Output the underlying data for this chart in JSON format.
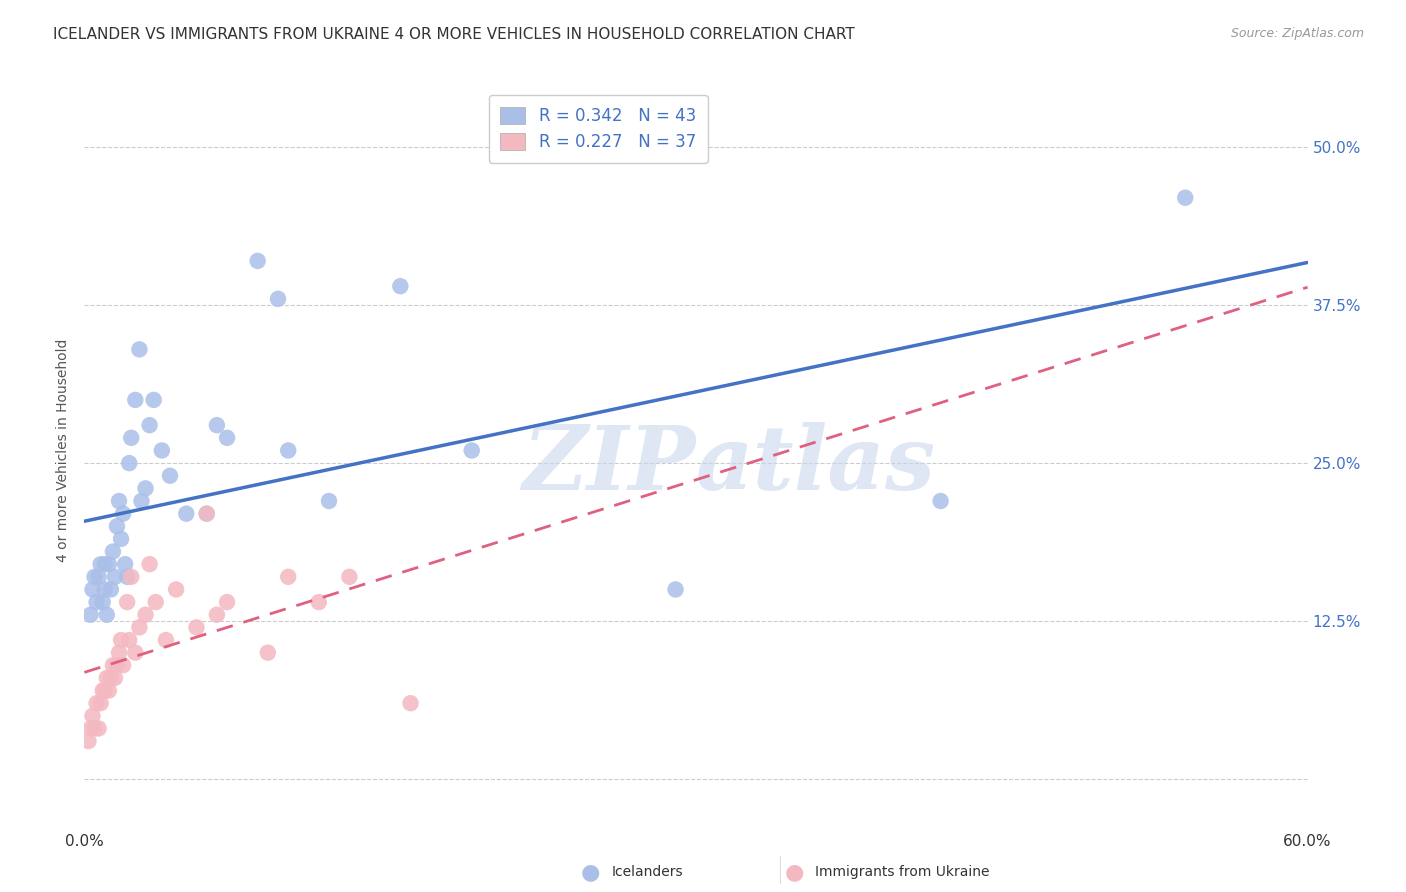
{
  "title": "ICELANDER VS IMMIGRANTS FROM UKRAINE 4 OR MORE VEHICLES IN HOUSEHOLD CORRELATION CHART",
  "source": "Source: ZipAtlas.com",
  "ylabel": "4 or more Vehicles in Household",
  "xlim": [
    0.0,
    0.6
  ],
  "ylim": [
    -0.04,
    0.56
  ],
  "xticks": [
    0.0,
    0.1,
    0.2,
    0.3,
    0.4,
    0.5,
    0.6
  ],
  "xticklabels": [
    "0.0%",
    "",
    "",
    "",
    "",
    "",
    "60.0%"
  ],
  "ytick_positions": [
    0.0,
    0.125,
    0.25,
    0.375,
    0.5
  ],
  "ytick_labels": [
    "",
    "12.5%",
    "25.0%",
    "37.5%",
    "50.0%"
  ],
  "grid_color": "#cccccc",
  "background_color": "#ffffff",
  "icelander_color": "#aabfe8",
  "ukraine_color": "#f4b8c1",
  "icelander_line_color": "#4472c4",
  "ukraine_line_color": "#e06080",
  "legend_R_icelander": "0.342",
  "legend_N_icelander": "43",
  "legend_R_ukraine": "0.227",
  "legend_N_ukraine": "37",
  "icelander_x": [
    0.003,
    0.004,
    0.005,
    0.006,
    0.007,
    0.008,
    0.009,
    0.01,
    0.01,
    0.011,
    0.012,
    0.013,
    0.014,
    0.015,
    0.016,
    0.017,
    0.018,
    0.019,
    0.02,
    0.021,
    0.022,
    0.023,
    0.025,
    0.027,
    0.028,
    0.03,
    0.032,
    0.034,
    0.038,
    0.042,
    0.05,
    0.06,
    0.065,
    0.07,
    0.085,
    0.095,
    0.1,
    0.12,
    0.155,
    0.19,
    0.29,
    0.42,
    0.54
  ],
  "icelander_y": [
    0.13,
    0.15,
    0.16,
    0.14,
    0.16,
    0.17,
    0.14,
    0.15,
    0.17,
    0.13,
    0.17,
    0.15,
    0.18,
    0.16,
    0.2,
    0.22,
    0.19,
    0.21,
    0.17,
    0.16,
    0.25,
    0.27,
    0.3,
    0.34,
    0.22,
    0.23,
    0.28,
    0.3,
    0.26,
    0.24,
    0.21,
    0.21,
    0.28,
    0.27,
    0.41,
    0.38,
    0.26,
    0.22,
    0.39,
    0.26,
    0.15,
    0.22,
    0.46
  ],
  "ukraine_x": [
    0.002,
    0.003,
    0.004,
    0.005,
    0.006,
    0.007,
    0.008,
    0.009,
    0.01,
    0.011,
    0.012,
    0.013,
    0.014,
    0.015,
    0.016,
    0.017,
    0.018,
    0.019,
    0.021,
    0.022,
    0.023,
    0.025,
    0.027,
    0.03,
    0.032,
    0.035,
    0.04,
    0.045,
    0.055,
    0.06,
    0.065,
    0.07,
    0.09,
    0.1,
    0.115,
    0.13,
    0.16
  ],
  "ukraine_y": [
    0.03,
    0.04,
    0.05,
    0.04,
    0.06,
    0.04,
    0.06,
    0.07,
    0.07,
    0.08,
    0.07,
    0.08,
    0.09,
    0.08,
    0.09,
    0.1,
    0.11,
    0.09,
    0.14,
    0.11,
    0.16,
    0.1,
    0.12,
    0.13,
    0.17,
    0.14,
    0.11,
    0.15,
    0.12,
    0.21,
    0.13,
    0.14,
    0.1,
    0.16,
    0.14,
    0.16,
    0.06
  ],
  "watermark_part1": "ZIP",
  "watermark_part2": "atlas",
  "title_fontsize": 11,
  "axis_label_fontsize": 10,
  "tick_fontsize": 11,
  "legend_fontsize": 12
}
